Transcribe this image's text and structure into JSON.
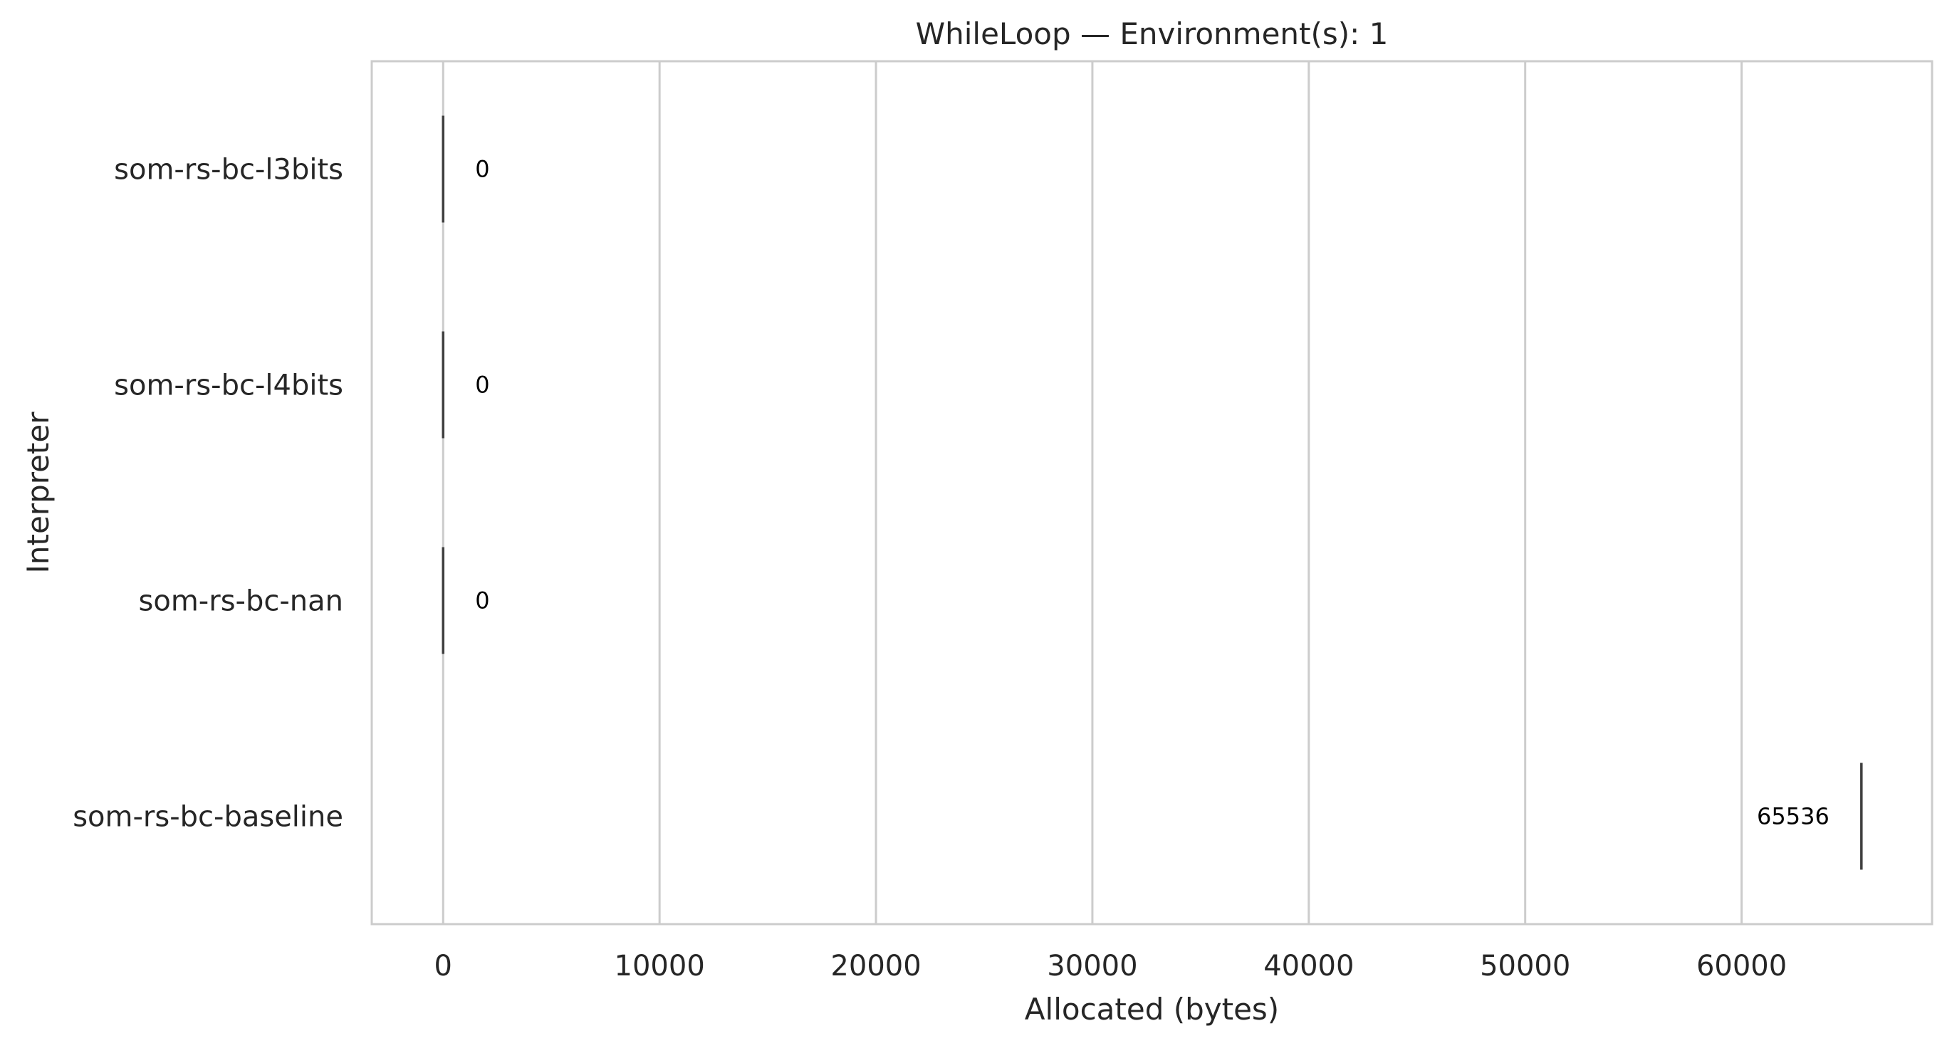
{
  "chart_data": {
    "type": "bar",
    "orientation": "horizontal",
    "title": "WhileLoop — Environment(s): 1",
    "xlabel": "Allocated (bytes)",
    "ylabel": "Interpreter",
    "categories": [
      "som-rs-bc-l3bits",
      "som-rs-bc-l4bits",
      "som-rs-bc-nan",
      "som-rs-bc-baseline"
    ],
    "values": [
      0,
      0,
      0,
      65536
    ],
    "data_labels": [
      "0",
      "0",
      "0",
      "65536"
    ],
    "xlim": [
      -3300,
      68800
    ],
    "xticks": [
      0,
      10000,
      20000,
      30000,
      40000,
      50000,
      60000
    ],
    "xtick_labels": [
      "0",
      "10000",
      "20000",
      "30000",
      "40000",
      "50000",
      "60000"
    ],
    "grid": "vertical",
    "legend": "none",
    "colors": {
      "grid": "#cccccc",
      "spine": "#cccccc",
      "bar_edge": "#3f3f3f",
      "text": "#262626",
      "data_label": "#000000"
    }
  }
}
